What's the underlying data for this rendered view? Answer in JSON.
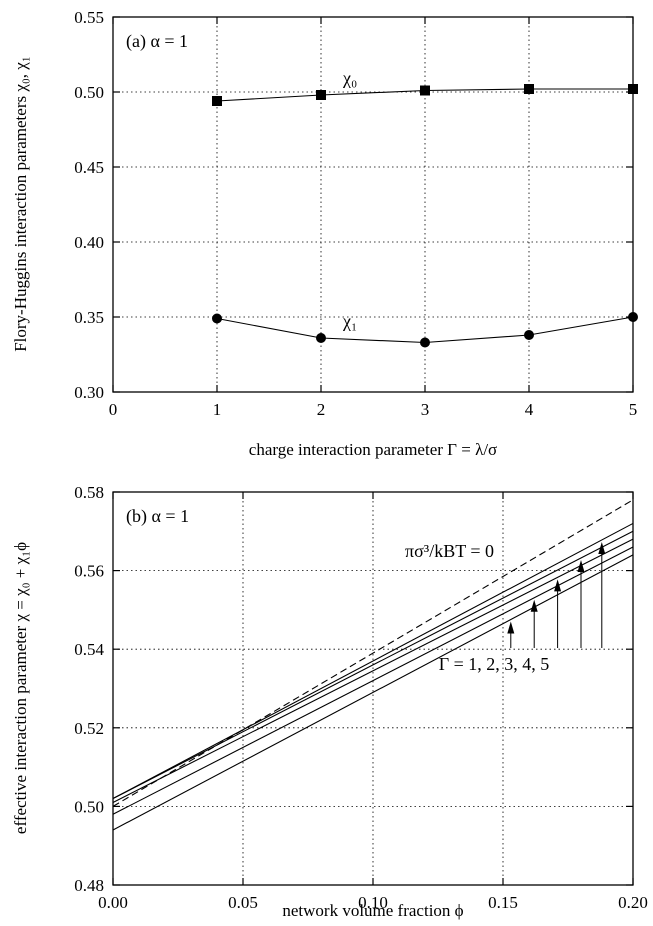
{
  "chart_data": [
    {
      "panel": "a",
      "type": "line",
      "annotation": "(a) α = 1",
      "xlabel": "charge interaction parameter Γ = λ/σ",
      "ylabel": "Flory-Huggins interaction parameters χ₀, χ₁",
      "xlim": [
        0,
        5
      ],
      "ylim": [
        0.3,
        0.55
      ],
      "xticks": [
        "0",
        "1",
        "2",
        "3",
        "4",
        "5"
      ],
      "yticks": [
        "0.30",
        "0.35",
        "0.40",
        "0.45",
        "0.50",
        "0.55"
      ],
      "grid": true,
      "x": [
        1,
        2,
        3,
        4,
        5
      ],
      "series": [
        {
          "name": "χ₀",
          "marker": "square",
          "values": [
            0.494,
            0.498,
            0.501,
            0.502,
            0.502
          ]
        },
        {
          "name": "χ₁",
          "marker": "circle",
          "values": [
            0.349,
            0.336,
            0.333,
            0.338,
            0.35
          ]
        }
      ]
    },
    {
      "panel": "b",
      "type": "line",
      "annotation": "(b) α = 1",
      "xlabel": "network volume fraction ϕ",
      "ylabel": "effective interaction parameter χ = χ₀ + χ₁ϕ",
      "xlim": [
        0,
        0.2
      ],
      "ylim": [
        0.48,
        0.58
      ],
      "xticks": [
        "0.00",
        "0.05",
        "0.10",
        "0.15",
        "0.20"
      ],
      "yticks": [
        "0.48",
        "0.50",
        "0.52",
        "0.54",
        "0.56",
        "0.58"
      ],
      "grid": true,
      "x": [
        0.0,
        0.2
      ],
      "dashed_label": "πσ³/kBT = 0",
      "gamma_label": "Γ = 1, 2, 3, 4, 5",
      "series": [
        {
          "style": "dashed",
          "values": [
            0.5,
            0.578
          ]
        },
        {
          "style": "solid",
          "values": [
            0.494,
            0.564
          ]
        },
        {
          "style": "solid",
          "values": [
            0.498,
            0.566
          ]
        },
        {
          "style": "solid",
          "values": [
            0.501,
            0.568
          ]
        },
        {
          "style": "solid",
          "values": [
            0.502,
            0.57
          ]
        },
        {
          "style": "solid",
          "values": [
            0.502,
            0.572
          ]
        }
      ]
    }
  ]
}
